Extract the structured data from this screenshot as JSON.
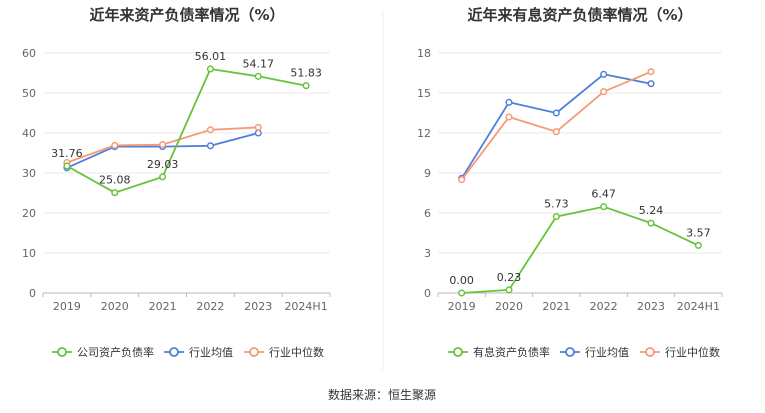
{
  "source": "数据来源：恒生聚源",
  "chart_data": [
    {
      "type": "line",
      "title": "近年来资产负债率情况（%）",
      "categories": [
        "2019",
        "2020",
        "2021",
        "2022",
        "2023",
        "2024H1"
      ],
      "ylim": [
        0,
        60
      ],
      "yticks": [
        0,
        10,
        20,
        30,
        40,
        50,
        60
      ],
      "grid": true,
      "legend_position": "bottom",
      "series": [
        {
          "name": "公司资产负债率",
          "color": "#66c43a",
          "labeled": true,
          "values": [
            31.76,
            25.08,
            29.03,
            56.01,
            54.17,
            51.83
          ],
          "labels": [
            "31.76",
            "25.08",
            "29.03",
            "56.01",
            "54.17",
            "51.83"
          ]
        },
        {
          "name": "行业均值",
          "color": "#4f7fdc",
          "labeled": false,
          "values": [
            31.3,
            36.6,
            36.6,
            36.8,
            40.0,
            null
          ]
        },
        {
          "name": "行业中位数",
          "color": "#f59a76",
          "labeled": false,
          "values": [
            32.6,
            36.9,
            37.1,
            40.8,
            41.4,
            null
          ]
        }
      ]
    },
    {
      "type": "line",
      "title": "近年来有息资产负债率情况（%）",
      "categories": [
        "2019",
        "2020",
        "2021",
        "2022",
        "2023",
        "2024H1"
      ],
      "ylim": [
        0,
        18
      ],
      "yticks": [
        0,
        3,
        6,
        9,
        12,
        15,
        18
      ],
      "grid": true,
      "legend_position": "bottom",
      "series": [
        {
          "name": "有息资产负债率",
          "color": "#66c43a",
          "labeled": true,
          "values": [
            0.0,
            0.23,
            5.73,
            6.47,
            5.24,
            3.57
          ],
          "labels": [
            "0.00",
            "0.23",
            "5.73",
            "6.47",
            "5.24",
            "3.57"
          ]
        },
        {
          "name": "行业均值",
          "color": "#4f7fdc",
          "labeled": false,
          "values": [
            8.6,
            14.3,
            13.5,
            16.4,
            15.7,
            null
          ]
        },
        {
          "name": "行业中位数",
          "color": "#f59a76",
          "labeled": false,
          "values": [
            8.5,
            13.2,
            12.1,
            15.1,
            16.6,
            null
          ]
        }
      ]
    }
  ]
}
